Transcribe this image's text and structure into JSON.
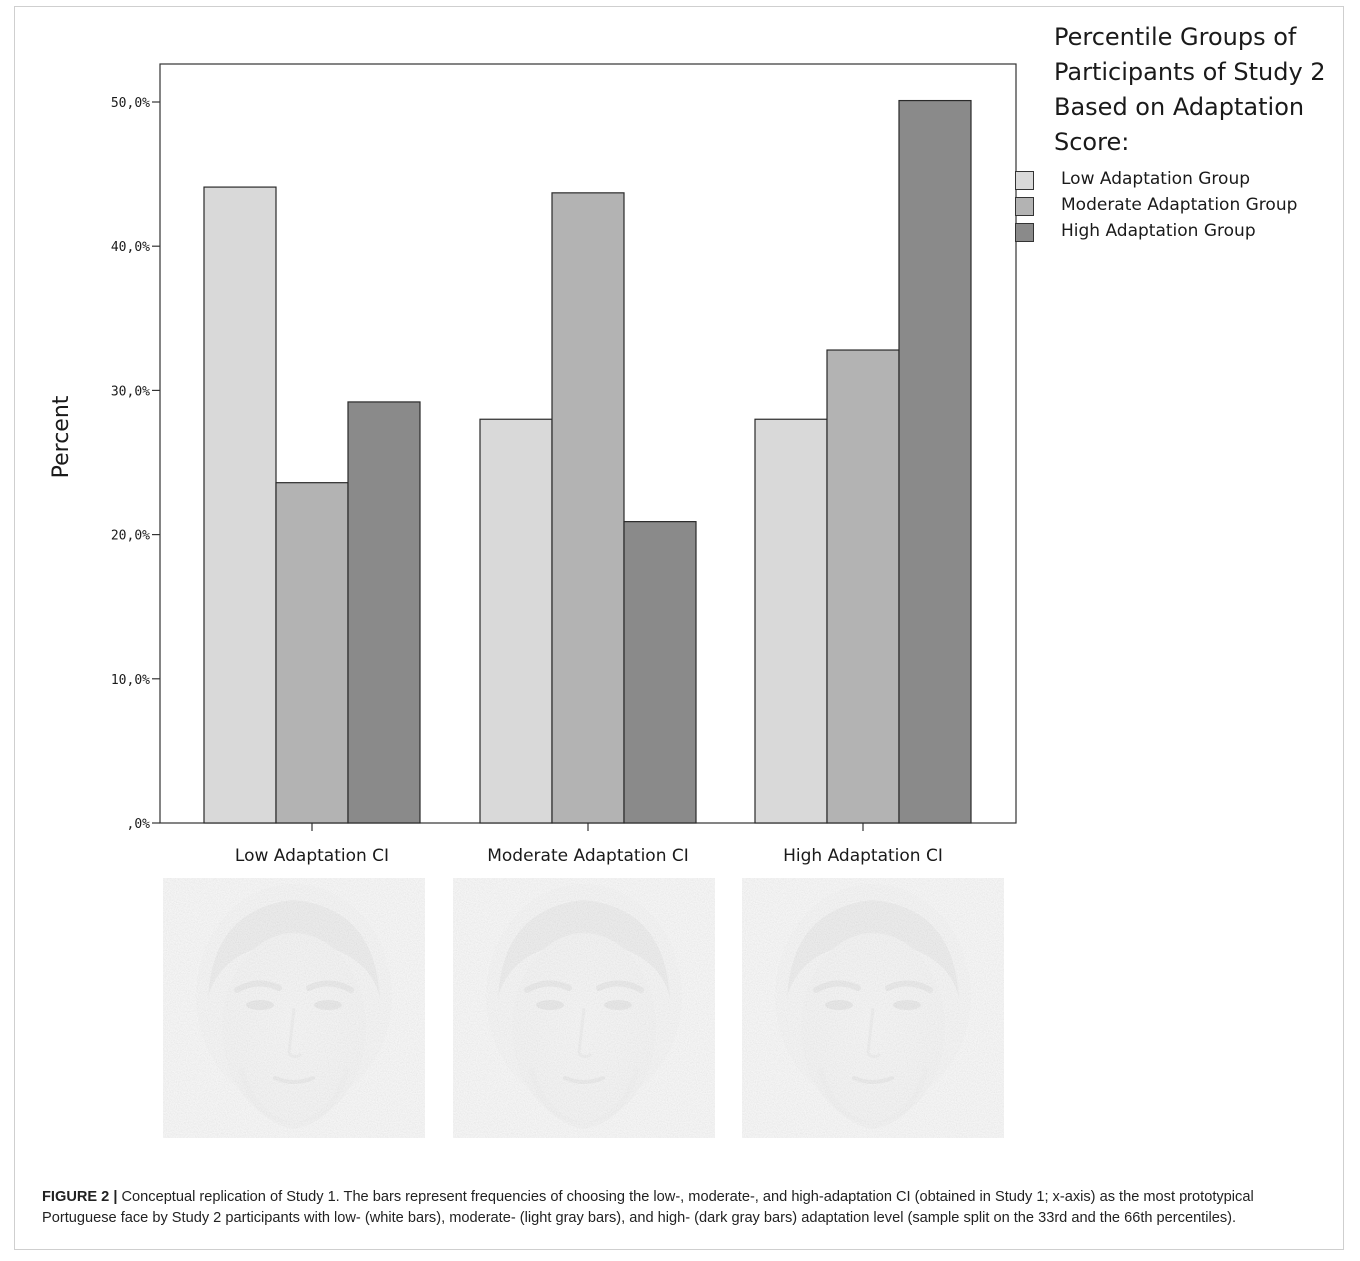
{
  "chart_data": {
    "type": "bar",
    "ylabel": "Percent",
    "xlabel": "",
    "ylim": [
      0,
      0.5
    ],
    "yticks": [
      0,
      0.1,
      0.2,
      0.3,
      0.4,
      0.5
    ],
    "ytick_labels": [
      ",0%",
      "10,0%",
      "20,0%",
      "30,0%",
      "40,0%",
      "50,0%"
    ],
    "categories": [
      "Low Adaptation CI",
      "Moderate Adaptation CI",
      "High Adaptation CI"
    ],
    "legend_title": "Percentile Groups of Participants of Study 2 Based on Adaptation Score:",
    "legend_position": "right",
    "grid": false,
    "series": [
      {
        "name": "Low Adaptation Group",
        "color": "#d9d9d9",
        "values": [
          0.441,
          0.28,
          0.28
        ]
      },
      {
        "name": "Moderate Adaptation Group",
        "color": "#b3b3b3",
        "values": [
          0.236,
          0.437,
          0.328
        ]
      },
      {
        "name": "High Adaptation Group",
        "color": "#8a8a8a",
        "values": [
          0.292,
          0.209,
          0.501
        ]
      }
    ]
  },
  "legend_title_lines": [
    "Percentile Groups of",
    "Participants of Study 2",
    "Based on Adaptation",
    "Score:"
  ],
  "faces": [
    {
      "icon": "face-image-icon"
    },
    {
      "icon": "face-image-icon"
    },
    {
      "icon": "face-image-icon"
    }
  ],
  "caption": {
    "label": "FIGURE 2 |",
    "text": " Conceptual replication of Study 1. The bars represent frequencies of choosing the low-, moderate-, and high-adaptation CI (obtained in Study 1; x-axis) as the most prototypical Portuguese face by Study 2 participants with low- (white bars), moderate- (light gray bars), and high- (dark gray bars) adaptation level (sample split on the 33rd and the 66th percentiles)."
  }
}
